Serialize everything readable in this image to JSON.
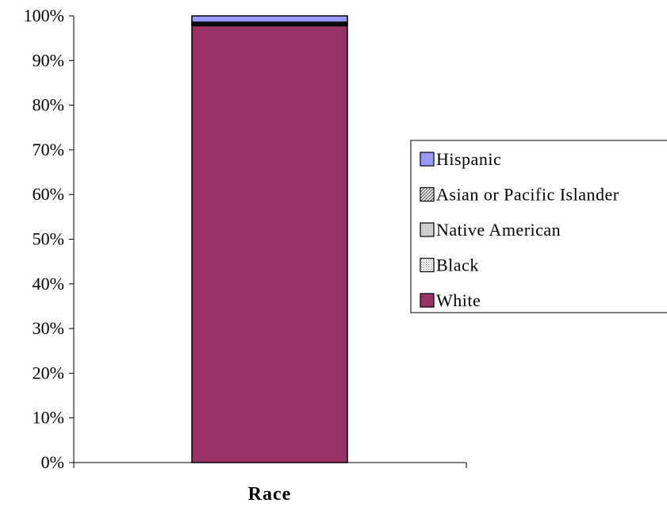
{
  "chart_data": {
    "type": "bar",
    "stacked": true,
    "percent_stacked": true,
    "categories": [
      ""
    ],
    "xlabel": "Race",
    "ylabel": "",
    "title": "",
    "ylim": [
      0,
      100
    ],
    "yticks": [
      "0%",
      "10%",
      "20%",
      "30%",
      "40%",
      "50%",
      "60%",
      "70%",
      "80%",
      "90%",
      "100%"
    ],
    "grid": false,
    "legend_position": "right",
    "series": [
      {
        "name": "White",
        "values": [
          97.8
        ],
        "color": "#993366",
        "pattern": "solid"
      },
      {
        "name": "Black",
        "values": [
          0.2
        ],
        "color": "#c0c0c0",
        "pattern": "dots"
      },
      {
        "name": "Native American",
        "values": [
          0.3
        ],
        "color": "#c0c0c0",
        "pattern": "light"
      },
      {
        "name": "Asian or Pacific Islander",
        "values": [
          0.3
        ],
        "color": "#808080",
        "pattern": "hatch"
      },
      {
        "name": "Hispanic",
        "values": [
          1.4
        ],
        "color": "#9999ff",
        "pattern": "solid"
      }
    ],
    "legend_order": [
      "Hispanic",
      "Asian or Pacific Islander",
      "Native American",
      "Black",
      "White"
    ]
  }
}
